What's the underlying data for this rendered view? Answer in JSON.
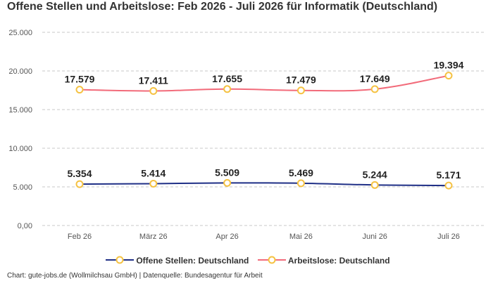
{
  "title": "Offene Stellen und Arbeitslose: Feb 2026 - Juli 2026 für Informatik (Deutschland)",
  "footer": "Chart: gute-jobs.de (Wollmilchsau GmbH) | Datenquelle: Bundesagentur für Arbeit",
  "chart_data": {
    "type": "line",
    "categories": [
      "Feb 26",
      "März 26",
      "Apr 26",
      "Mai 26",
      "Juni 26",
      "Juli 26"
    ],
    "series": [
      {
        "name": "Offene Stellen: Deutschland",
        "values": [
          5354,
          5414,
          5509,
          5469,
          5244,
          5171
        ],
        "labels": [
          "5.354",
          "5.414",
          "5.509",
          "5.469",
          "5.244",
          "5.171"
        ],
        "color": "#1f2f86"
      },
      {
        "name": "Arbeitslose: Deutschland",
        "values": [
          17579,
          17411,
          17655,
          17479,
          17649,
          19394
        ],
        "labels": [
          "17.579",
          "17.411",
          "17.655",
          "17.479",
          "17.649",
          "19.394"
        ],
        "color": "#f26b7a"
      }
    ],
    "yticks": [
      0,
      5000,
      10000,
      15000,
      20000,
      25000
    ],
    "ytick_labels": [
      "0,00",
      "5.000",
      "10.000",
      "15.000",
      "20.000",
      "25.000"
    ],
    "ylim": [
      0,
      25000
    ],
    "grid": true,
    "marker_color": "#f5c242",
    "legend_position": "bottom"
  }
}
